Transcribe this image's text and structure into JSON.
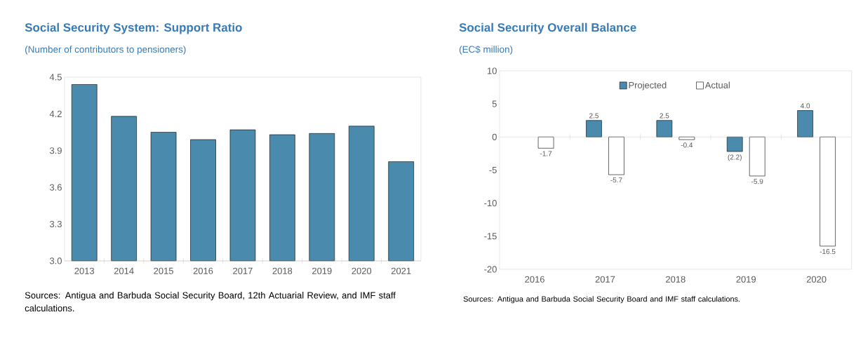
{
  "chart_data": [
    {
      "type": "bar",
      "title": "Social Security System: Support Ratio",
      "subtitle": "(Number of contributors to pensioners)",
      "categories": [
        "2013",
        "2014",
        "2015",
        "2016",
        "2017",
        "2018",
        "2019",
        "2020",
        "2021"
      ],
      "values": [
        4.44,
        4.18,
        4.05,
        3.99,
        4.07,
        4.03,
        4.04,
        4.1,
        3.81
      ],
      "color": "#4a8bad",
      "ylim": [
        3.0,
        4.5
      ],
      "yticks": [
        {
          "value": 3,
          "label": "3.0"
        },
        3.3,
        3.6,
        3.9,
        4.2,
        4.5
      ],
      "annotations": [
        "Sources: Antigua and Barbuda Social Security Board, 12th Actuarial Review, and IMF staff calculations."
      ]
    },
    {
      "type": "bar",
      "title": "Social Security Overall Balance",
      "subtitle": "(EC$ million)",
      "categories": [
        "2016",
        "2017",
        "2018",
        "2019",
        "2020"
      ],
      "series": [
        {
          "name": "Projected",
          "color": "#4a8bad",
          "values": [
            null,
            2.5,
            2.5,
            -2.2,
            4.0
          ],
          "value_labels": [
            null,
            "2.5",
            "2.5",
            "(2.2)",
            "4.0"
          ]
        },
        {
          "name": "Actual",
          "color": "#ffffff",
          "values": [
            -1.7,
            -5.7,
            -0.4,
            -5.9,
            -16.5
          ],
          "value_labels": [
            "-1.7",
            "-5.7",
            "-0.4",
            "-5.9",
            "-16.5"
          ]
        }
      ],
      "ylim": [
        -20,
        10
      ],
      "yticks": [
        -20,
        -15,
        -10,
        -5,
        0,
        5,
        10
      ],
      "legend": "top",
      "annotations": [
        "Sources: Antigua and Barbuda Social Security Board and IMF staff calculations."
      ]
    }
  ]
}
